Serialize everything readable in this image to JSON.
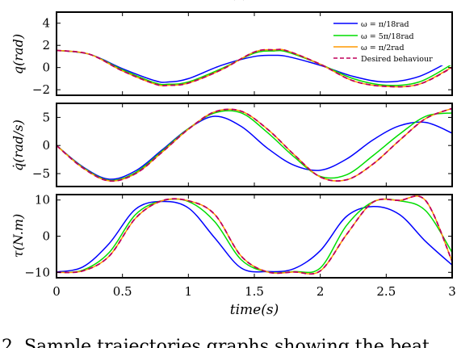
{
  "chart_data": [
    {
      "type": "line",
      "ylabel": "q(rad)",
      "xlim": [
        0,
        3
      ],
      "ylim": [
        -2.5,
        5
      ],
      "yticks": [
        -2,
        0,
        2,
        4
      ],
      "ytick_labels": [
        "−2",
        "0",
        "2",
        "4"
      ],
      "grid": false,
      "legend_position": "top-right",
      "legend": [
        "ω = π/18rad",
        "ω = 5π/18rad",
        "ω = π/2rad",
        "Desired behaviour"
      ],
      "x": [
        0,
        0.25,
        0.5,
        0.75,
        0.85,
        1.0,
        1.25,
        1.5,
        1.65,
        1.75,
        2.0,
        2.25,
        2.5,
        2.75,
        3.0
      ],
      "series": [
        {
          "name": "ω = π/18rad",
          "color": "#0000ff",
          "dash": "solid",
          "values": [
            1.55,
            1.2,
            -0.1,
            -1.2,
            -1.3,
            -1.0,
            0.2,
            1.0,
            1.1,
            1.0,
            0.2,
            -0.8,
            -1.3,
            -0.8,
            0.7
          ]
        },
        {
          "name": "ω = 5π/18rad",
          "color": "#00dd00",
          "dash": "solid",
          "values": [
            1.55,
            1.2,
            -0.2,
            -1.4,
            -1.5,
            -1.3,
            -0.1,
            1.3,
            1.5,
            1.4,
            0.3,
            -1.0,
            -1.6,
            -1.3,
            0.3
          ]
        },
        {
          "name": "ω = π/2rad",
          "color": "#ff9900",
          "dash": "solid",
          "values": [
            1.55,
            1.2,
            -0.3,
            -1.5,
            -1.6,
            -1.4,
            -0.2,
            1.4,
            1.6,
            1.5,
            0.3,
            -1.2,
            -1.7,
            -1.5,
            0.05
          ]
        },
        {
          "name": "Desired behaviour",
          "color": "#c0005a",
          "dash": "dashed",
          "values": [
            1.55,
            1.2,
            -0.3,
            -1.5,
            -1.6,
            -1.4,
            -0.2,
            1.4,
            1.6,
            1.5,
            0.3,
            -1.2,
            -1.7,
            -1.5,
            0.0
          ]
        }
      ]
    },
    {
      "type": "line",
      "ylabel": "q̇(rad/s)",
      "xlim": [
        0,
        3
      ],
      "ylim": [
        -7.3,
        7.5
      ],
      "yticks": [
        -5,
        0,
        5
      ],
      "ytick_labels": [
        "−5",
        "0",
        "5"
      ],
      "grid": false,
      "x": [
        0,
        0.2,
        0.4,
        0.6,
        0.8,
        1.0,
        1.2,
        1.4,
        1.6,
        1.8,
        2.0,
        2.2,
        2.4,
        2.6,
        2.8,
        3.0
      ],
      "series": [
        {
          "name": "ω = π/18rad",
          "color": "#0000ff",
          "dash": "solid",
          "values": [
            0,
            -3.8,
            -6.0,
            -4.5,
            -0.8,
            3.0,
            5.2,
            3.4,
            -0.5,
            -3.5,
            -4.4,
            -2.4,
            1.0,
            3.5,
            4.1,
            2.2
          ]
        },
        {
          "name": "ω = 5π/18rad",
          "color": "#00dd00",
          "dash": "solid",
          "values": [
            0,
            -3.9,
            -6.2,
            -4.8,
            -1.0,
            3.0,
            5.8,
            5.8,
            2.3,
            -2.0,
            -5.5,
            -5.2,
            -1.8,
            2.0,
            5.2,
            5.8
          ]
        },
        {
          "name": "ω = π/2rad",
          "color": "#ff9900",
          "dash": "solid",
          "values": [
            0,
            -4.0,
            -6.3,
            -5.0,
            -1.2,
            2.9,
            6.0,
            6.1,
            2.9,
            -1.6,
            -5.6,
            -6.1,
            -3.3,
            0.9,
            4.8,
            6.6
          ]
        },
        {
          "name": "Desired behaviour",
          "color": "#c0005a",
          "dash": "dashed",
          "values": [
            0,
            -4.0,
            -6.3,
            -5.0,
            -1.2,
            2.9,
            6.0,
            6.1,
            2.9,
            -1.6,
            -5.6,
            -6.1,
            -3.3,
            0.9,
            4.8,
            6.6
          ]
        }
      ]
    },
    {
      "type": "line",
      "ylabel": "τ(N.m)",
      "xlabel": "time(s)",
      "xlim": [
        0,
        3
      ],
      "ylim": [
        -11.5,
        11.5
      ],
      "yticks": [
        -10,
        0,
        10
      ],
      "ytick_labels": [
        "−10",
        "0",
        "10"
      ],
      "xticks": [
        0,
        0.5,
        1,
        1.5,
        2,
        2.5,
        3
      ],
      "xtick_labels": [
        "0",
        "0.5",
        "1",
        "1.5",
        "2",
        "2.5",
        "3"
      ],
      "grid": false,
      "x": [
        0,
        0.2,
        0.4,
        0.6,
        0.8,
        1.0,
        1.2,
        1.4,
        1.6,
        1.8,
        2.0,
        2.2,
        2.4,
        2.6,
        2.8,
        3.0
      ],
      "series": [
        {
          "name": "ω = π/18rad",
          "color": "#0000ff",
          "dash": "solid",
          "values": [
            -9.9,
            -8.5,
            -2.0,
            7.5,
            9.6,
            7.8,
            -0.5,
            -8.8,
            -9.8,
            -9.0,
            -4.0,
            5.5,
            8.2,
            6.0,
            -1.5,
            -8.0
          ]
        },
        {
          "name": "ω = 5π/18rad",
          "color": "#00dd00",
          "dash": "solid",
          "values": [
            -10.0,
            -9.4,
            -4.5,
            6.0,
            9.8,
            9.6,
            4.0,
            -6.5,
            -9.9,
            -9.8,
            -8.8,
            3.0,
            9.5,
            9.8,
            7.0,
            -4.5
          ]
        },
        {
          "name": "ω = π/2rad",
          "color": "#ff9900",
          "dash": "solid",
          "values": [
            -10.0,
            -9.6,
            -5.5,
            5.0,
            9.8,
            9.8,
            6.0,
            -5.5,
            -9.9,
            -9.9,
            -9.6,
            0.5,
            9.4,
            9.9,
            9.8,
            -7.0
          ]
        },
        {
          "name": "Desired behaviour",
          "color": "#c0005a",
          "dash": "dashed",
          "values": [
            -10.0,
            -9.6,
            -5.5,
            5.0,
            9.8,
            9.8,
            6.0,
            -5.5,
            -9.9,
            -9.9,
            -9.6,
            0.5,
            9.4,
            9.9,
            9.8,
            -7.0
          ]
        }
      ]
    }
  ],
  "caption_fragment": "2. Sample trajectories graphs showing the beat"
}
